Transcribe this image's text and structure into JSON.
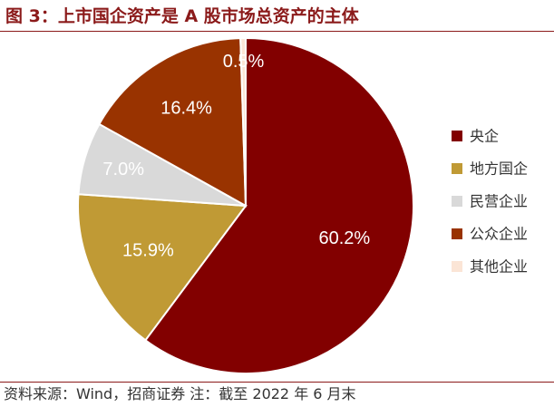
{
  "figure": {
    "title": "图 3：上市国企资产是 A 股市场总资产的主体",
    "source": "资料来源：Wind，招商证券    注：截至 2022 年 6 月末"
  },
  "chart_data": {
    "type": "pie",
    "slices": [
      {
        "name": "央企",
        "value": 60.2,
        "label": "60.2%",
        "color": "#820000"
      },
      {
        "name": "地方国企",
        "value": 15.9,
        "label": "15.9%",
        "color": "#C09A35"
      },
      {
        "name": "民营企业",
        "value": 7.0,
        "label": "7.0%",
        "color": "#D9D9D9"
      },
      {
        "name": "公众企业",
        "value": 16.4,
        "label": "16.4%",
        "color": "#993300"
      },
      {
        "name": "其他企业",
        "value": 0.5,
        "label": "0.5%",
        "color": "#FBE5D6"
      }
    ],
    "start_angle_deg": 0,
    "direction": "clockwise",
    "legend_position": "right"
  }
}
